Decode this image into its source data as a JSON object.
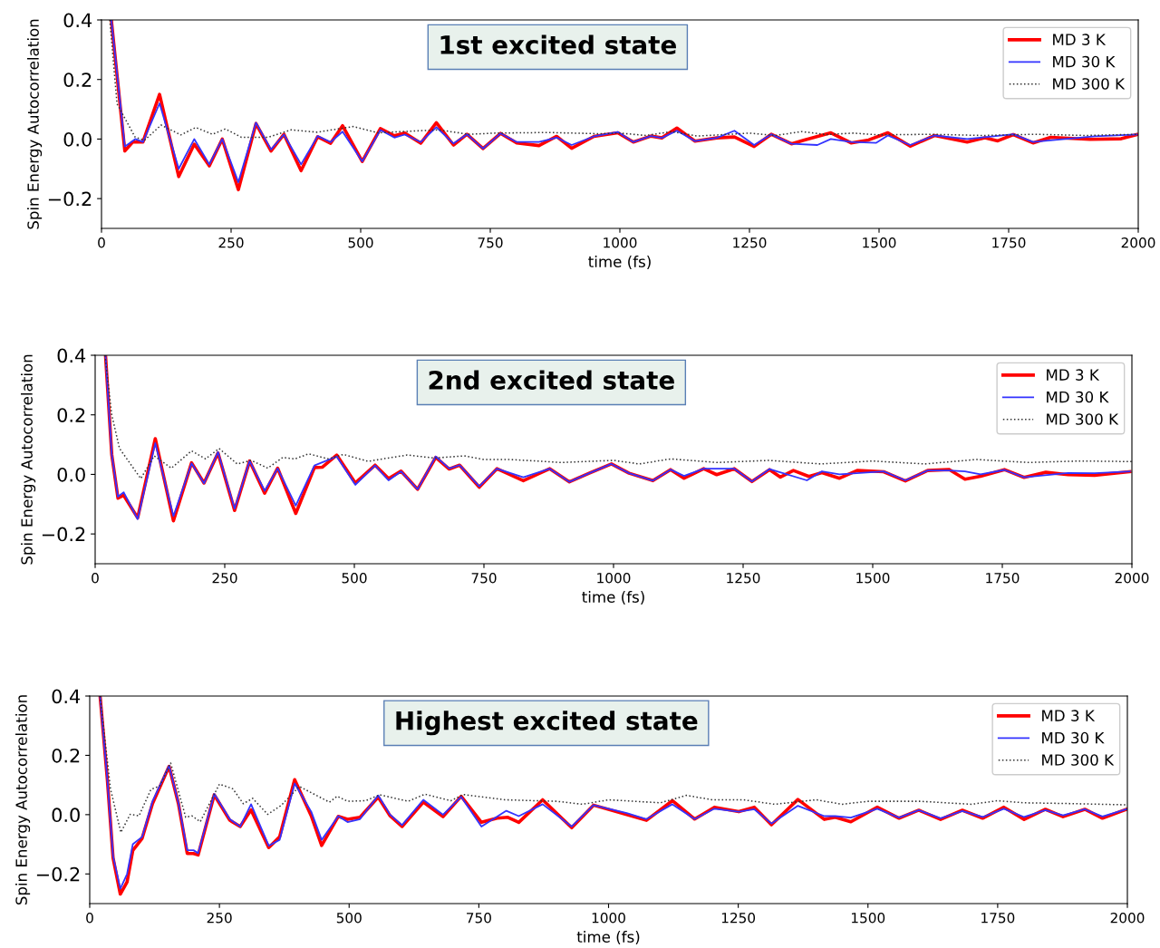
{
  "chart_data": [
    {
      "type": "line",
      "title": "1st excited state",
      "xlabel": "time (fs)",
      "ylabel": "Spin Energy Autocorrelation",
      "xlim": [
        0,
        2000
      ],
      "ylim": [
        -0.3,
        0.4
      ],
      "xticks": [
        0,
        250,
        500,
        750,
        1000,
        1250,
        1500,
        1750,
        2000
      ],
      "yticks": [
        {
          "value": -0.2,
          "label": "−0.2"
        },
        {
          "value": 0,
          "label": "0.0"
        },
        {
          "value": 0.2,
          "label": "0.2"
        },
        {
          "value": 0.4,
          "label": "0.4"
        }
      ],
      "legend": "top right",
      "grid": false,
      "series": [
        {
          "name": "MD 3 K",
          "color": "#ff0000",
          "line_style": "solid",
          "x": [
            19,
            45,
            60,
            80,
            112,
            149,
            179,
            208,
            233,
            264,
            298,
            327,
            352,
            385,
            417,
            442,
            465,
            503,
            538,
            565,
            585,
            616,
            646,
            679,
            705,
            736,
            770,
            801,
            844,
            878,
            907,
            950,
            996,
            1026,
            1060,
            1081,
            1110,
            1145,
            1187,
            1221,
            1259,
            1292,
            1331,
            1356,
            1407,
            1446,
            1480,
            1517,
            1560,
            1607,
            1670,
            1704,
            1729,
            1759,
            1797,
            1831,
            1907,
            1967,
            1997
          ],
          "values": [
            0.4,
            -0.04,
            -0.01,
            -0.01,
            0.15,
            -0.126,
            -0.017,
            -0.09,
            0.0,
            -0.17,
            0.052,
            -0.04,
            0.016,
            -0.106,
            0.008,
            -0.014,
            0.045,
            -0.075,
            0.035,
            0.011,
            0.02,
            -0.014,
            0.055,
            -0.02,
            0.016,
            -0.032,
            0.019,
            -0.013,
            -0.022,
            0.009,
            -0.031,
            0.009,
            0.021,
            -0.01,
            0.01,
            0.004,
            0.037,
            -0.007,
            0.004,
            0.007,
            -0.025,
            0.016,
            -0.016,
            -0.003,
            0.021,
            -0.013,
            -0.003,
            0.021,
            -0.024,
            0.012,
            -0.01,
            0.004,
            -0.006,
            0.015,
            -0.013,
            0.006,
            -0.001,
            0.001,
            0.015
          ]
        },
        {
          "name": "MD 30 K",
          "color": "#3333ff",
          "line_style": "solid",
          "x": [
            19,
            45,
            65,
            80,
            112,
            149,
            179,
            208,
            233,
            264,
            298,
            327,
            352,
            385,
            417,
            442,
            465,
            503,
            538,
            565,
            585,
            616,
            646,
            679,
            705,
            736,
            770,
            801,
            844,
            878,
            907,
            950,
            996,
            1026,
            1060,
            1081,
            1110,
            1145,
            1187,
            1221,
            1259,
            1292,
            1331,
            1381,
            1407,
            1446,
            1494,
            1517,
            1560,
            1607,
            1670,
            1759,
            1797,
            1916,
            1997
          ],
          "values": [
            0.4,
            -0.025,
            0.0,
            -0.01,
            0.12,
            -0.1,
            0.0,
            -0.085,
            0.0,
            -0.145,
            0.055,
            -0.035,
            0.015,
            -0.085,
            0.01,
            -0.01,
            0.025,
            -0.075,
            0.03,
            0.005,
            0.015,
            -0.01,
            0.04,
            -0.015,
            0.016,
            -0.032,
            0.019,
            -0.01,
            -0.01,
            0.005,
            -0.02,
            0.009,
            0.024,
            -0.01,
            0.01,
            0.004,
            0.028,
            -0.007,
            0.004,
            0.028,
            -0.02,
            0.016,
            -0.016,
            -0.02,
            0.0,
            -0.01,
            -0.013,
            0.012,
            -0.02,
            0.012,
            0.0,
            0.016,
            -0.01,
            0.009,
            0.015
          ]
        },
        {
          "name": "MD 300 K",
          "color": "#333333",
          "line_style": "dotted",
          "x": [
            16,
            30,
            65,
            83,
            115,
            153,
            182,
            214,
            239,
            270,
            322,
            366,
            416,
            486,
            533,
            650,
            708,
            760,
            860,
            960,
            1000,
            1050,
            1100,
            1150,
            1250,
            1300,
            1350,
            1400,
            1450,
            1500,
            1600,
            1700,
            1800,
            1900,
            2000
          ],
          "values": [
            0.4,
            0.118,
            0.006,
            -0.004,
            0.047,
            0.014,
            0.039,
            0.016,
            0.034,
            0.006,
            0.006,
            0.031,
            0.023,
            0.042,
            0.021,
            0.031,
            0.016,
            0.02,
            0.022,
            0.018,
            0.02,
            0.012,
            0.025,
            0.01,
            0.02,
            0.012,
            0.025,
            0.015,
            0.02,
            0.014,
            0.016,
            0.012,
            0.016,
            0.012,
            0.016
          ]
        }
      ]
    },
    {
      "type": "line",
      "title": "2nd excited state",
      "xlabel": "time (fs)",
      "ylabel": "Spin Energy Autocorrelation",
      "xlim": [
        0,
        2000
      ],
      "ylim": [
        -0.3,
        0.4
      ],
      "xticks": [
        0,
        250,
        500,
        750,
        1000,
        1250,
        1500,
        1750,
        2000
      ],
      "yticks": [
        {
          "value": -0.2,
          "label": "−0.2"
        },
        {
          "value": 0,
          "label": "0.0"
        },
        {
          "value": 0.2,
          "label": "0.2"
        },
        {
          "value": 0.4,
          "label": "0.4"
        }
      ],
      "legend": "top right",
      "grid": false,
      "series": [
        {
          "name": "MD 3 K",
          "color": "#ff0000",
          "line_style": "solid",
          "x": [
            20,
            32,
            44,
            55,
            82,
            116,
            151,
            186,
            210,
            237,
            269,
            298,
            327,
            352,
            387,
            423,
            438,
            466,
            502,
            540,
            566,
            590,
            622,
            657,
            683,
            703,
            741,
            775,
            826,
            877,
            915,
            953,
            996,
            1030,
            1076,
            1110,
            1136,
            1174,
            1199,
            1233,
            1267,
            1301,
            1322,
            1347,
            1377,
            1402,
            1436,
            1470,
            1521,
            1563,
            1606,
            1648,
            1678,
            1708,
            1754,
            1792,
            1834,
            1877,
            1928,
            1996
          ],
          "values": [
            0.4,
            0.067,
            -0.08,
            -0.07,
            -0.146,
            0.12,
            -0.156,
            0.039,
            -0.029,
            0.072,
            -0.121,
            0.045,
            -0.063,
            0.021,
            -0.131,
            0.023,
            0.024,
            0.065,
            -0.029,
            0.031,
            -0.014,
            0.011,
            -0.05,
            0.057,
            0.018,
            0.031,
            -0.043,
            0.019,
            -0.021,
            0.019,
            -0.025,
            0.004,
            0.035,
            0.004,
            -0.021,
            0.016,
            -0.013,
            0.019,
            -0.001,
            0.019,
            -0.024,
            0.016,
            -0.009,
            0.013,
            -0.007,
            0.006,
            -0.013,
            0.013,
            0.009,
            -0.022,
            0.013,
            0.016,
            -0.016,
            -0.006,
            0.016,
            -0.01,
            0.007,
            -0.001,
            -0.003,
            0.009
          ]
        },
        {
          "name": "MD 30 K",
          "color": "#3333ff",
          "line_style": "solid",
          "x": [
            20,
            32,
            44,
            55,
            82,
            116,
            151,
            186,
            210,
            237,
            269,
            298,
            327,
            352,
            387,
            423,
            466,
            502,
            540,
            566,
            590,
            622,
            657,
            683,
            703,
            741,
            775,
            826,
            877,
            915,
            953,
            996,
            1030,
            1076,
            1110,
            1136,
            1174,
            1233,
            1267,
            1301,
            1373,
            1402,
            1436,
            1521,
            1563,
            1606,
            1648,
            1678,
            1708,
            1754,
            1792,
            1877,
            1928,
            1996
          ],
          "values": [
            0.4,
            0.067,
            -0.075,
            -0.06,
            -0.15,
            0.105,
            -0.14,
            0.037,
            -0.03,
            0.075,
            -0.115,
            0.045,
            -0.055,
            0.02,
            -0.105,
            0.03,
            0.06,
            -0.035,
            0.03,
            -0.02,
            0.01,
            -0.05,
            0.06,
            0.02,
            0.031,
            -0.04,
            0.019,
            -0.01,
            0.019,
            -0.025,
            0.004,
            0.035,
            0.004,
            -0.021,
            0.016,
            -0.005,
            0.019,
            0.019,
            -0.024,
            0.018,
            -0.02,
            0.01,
            0.0,
            0.01,
            -0.02,
            0.013,
            0.013,
            0.01,
            0.0,
            0.015,
            -0.01,
            0.005,
            0.004,
            0.01
          ]
        },
        {
          "name": "MD 300 K",
          "color": "#333333",
          "line_style": "dotted",
          "x": [
            19,
            32,
            47,
            88,
            114,
            147,
            186,
            213,
            239,
            274,
            301,
            333,
            362,
            385,
            412,
            450,
            479,
            526,
            602,
            654,
            712,
            750,
            800,
            900,
            1000,
            1050,
            1110,
            1200,
            1300,
            1400,
            1500,
            1600,
            1700,
            1800,
            1900,
            2000
          ],
          "values": [
            0.4,
            0.2,
            0.087,
            -0.014,
            0.062,
            0.021,
            0.079,
            0.052,
            0.087,
            0.035,
            0.047,
            0.021,
            0.057,
            0.052,
            0.069,
            0.052,
            0.067,
            0.044,
            0.065,
            0.055,
            0.062,
            0.05,
            0.05,
            0.04,
            0.047,
            0.035,
            0.052,
            0.04,
            0.047,
            0.035,
            0.045,
            0.035,
            0.05,
            0.04,
            0.045,
            0.043
          ]
        }
      ]
    },
    {
      "type": "line",
      "title": "Highest excited state",
      "xlabel": "time (fs)",
      "ylabel": "Spin Energy Autocorrelation",
      "xlim": [
        0,
        2000
      ],
      "ylim": [
        -0.3,
        0.4
      ],
      "xticks": [
        0,
        250,
        500,
        750,
        1000,
        1250,
        1500,
        1750,
        2000
      ],
      "yticks": [
        {
          "value": -0.2,
          "label": "−0.2"
        },
        {
          "value": 0,
          "label": "0.0"
        },
        {
          "value": 0.2,
          "label": "0.2"
        },
        {
          "value": 0.4,
          "label": "0.4"
        }
      ],
      "legend": "top right",
      "grid": false,
      "series": [
        {
          "name": "MD 3 K",
          "color": "#ff0000",
          "line_style": "solid",
          "x": [
            20,
            34,
            45,
            59,
            72,
            83,
            101,
            121,
            153,
            171,
            188,
            200,
            209,
            240,
            270,
            290,
            311,
            345,
            366,
            395,
            427,
            447,
            479,
            497,
            521,
            556,
            579,
            602,
            643,
            681,
            716,
            755,
            785,
            806,
            827,
            873,
            929,
            971,
            1035,
            1073,
            1123,
            1166,
            1204,
            1251,
            1281,
            1314,
            1365,
            1416,
            1437,
            1467,
            1518,
            1560,
            1598,
            1640,
            1682,
            1721,
            1762,
            1801,
            1842,
            1876,
            1918,
            1952,
            1998
          ],
          "values": [
            0.4,
            0.118,
            -0.146,
            -0.268,
            -0.227,
            -0.121,
            -0.08,
            0.037,
            0.163,
            0.037,
            -0.131,
            -0.131,
            -0.136,
            0.067,
            -0.019,
            -0.04,
            0.016,
            -0.111,
            -0.075,
            0.118,
            -0.004,
            -0.104,
            -0.006,
            -0.016,
            -0.009,
            0.059,
            -0.004,
            -0.04,
            0.042,
            -0.007,
            0.062,
            -0.026,
            -0.012,
            -0.009,
            -0.026,
            0.05,
            -0.044,
            0.032,
            0.0,
            -0.019,
            0.047,
            -0.015,
            0.025,
            0.01,
            0.025,
            -0.034,
            0.051,
            -0.016,
            -0.009,
            -0.024,
            0.025,
            -0.012,
            0.015,
            -0.016,
            0.015,
            -0.012,
            0.025,
            -0.016,
            0.018,
            -0.007,
            0.018,
            -0.012,
            0.018
          ]
        },
        {
          "name": "MD 30 K",
          "color": "#3333ff",
          "line_style": "solid",
          "x": [
            20,
            34,
            45,
            59,
            72,
            83,
            101,
            121,
            153,
            171,
            188,
            200,
            209,
            240,
            270,
            290,
            311,
            345,
            366,
            395,
            427,
            447,
            479,
            497,
            521,
            556,
            579,
            602,
            643,
            681,
            716,
            755,
            803,
            827,
            873,
            929,
            971,
            1035,
            1073,
            1123,
            1166,
            1204,
            1251,
            1281,
            1314,
            1365,
            1416,
            1437,
            1467,
            1518,
            1560,
            1598,
            1640,
            1682,
            1721,
            1762,
            1801,
            1842,
            1876,
            1918,
            1952,
            1998
          ],
          "values": [
            0.4,
            0.118,
            -0.14,
            -0.25,
            -0.2,
            -0.1,
            -0.075,
            0.045,
            0.165,
            0.04,
            -0.12,
            -0.12,
            -0.13,
            0.07,
            -0.015,
            -0.04,
            0.035,
            -0.105,
            -0.085,
            0.105,
            0.01,
            -0.085,
            -0.005,
            -0.025,
            -0.015,
            0.065,
            0.0,
            -0.035,
            0.05,
            0.0,
            0.06,
            -0.04,
            0.013,
            -0.005,
            0.035,
            -0.04,
            0.032,
            0.005,
            -0.015,
            0.035,
            -0.015,
            0.02,
            0.01,
            0.018,
            -0.03,
            0.03,
            -0.005,
            -0.005,
            -0.01,
            0.02,
            -0.01,
            0.015,
            -0.012,
            0.012,
            -0.008,
            0.02,
            -0.008,
            0.015,
            -0.002,
            0.018,
            -0.006,
            0.018
          ]
        },
        {
          "name": "MD 300 K",
          "color": "#333333",
          "line_style": "dotted",
          "x": [
            20,
            40,
            60,
            78,
            95,
            118,
            135,
            156,
            185,
            197,
            213,
            250,
            276,
            296,
            314,
            343,
            369,
            404,
            462,
            477,
            497,
            532,
            559,
            614,
            646,
            696,
            720,
            800,
            900,
            950,
            1000,
            1050,
            1100,
            1150,
            1200,
            1260,
            1320,
            1400,
            1450,
            1500,
            1600,
            1700,
            1750,
            1800,
            1900,
            2000
          ],
          "values": [
            0.4,
            0.087,
            -0.06,
            0.001,
            -0.004,
            0.085,
            0.097,
            0.174,
            -0.009,
            -0.004,
            -0.024,
            0.103,
            0.087,
            0.037,
            0.055,
            0.001,
            0.031,
            0.095,
            0.042,
            0.062,
            0.045,
            0.047,
            0.067,
            0.045,
            0.069,
            0.047,
            0.068,
            0.05,
            0.045,
            0.035,
            0.05,
            0.045,
            0.04,
            0.065,
            0.05,
            0.05,
            0.035,
            0.05,
            0.035,
            0.045,
            0.045,
            0.035,
            0.047,
            0.04,
            0.037,
            0.033
          ]
        }
      ]
    }
  ]
}
